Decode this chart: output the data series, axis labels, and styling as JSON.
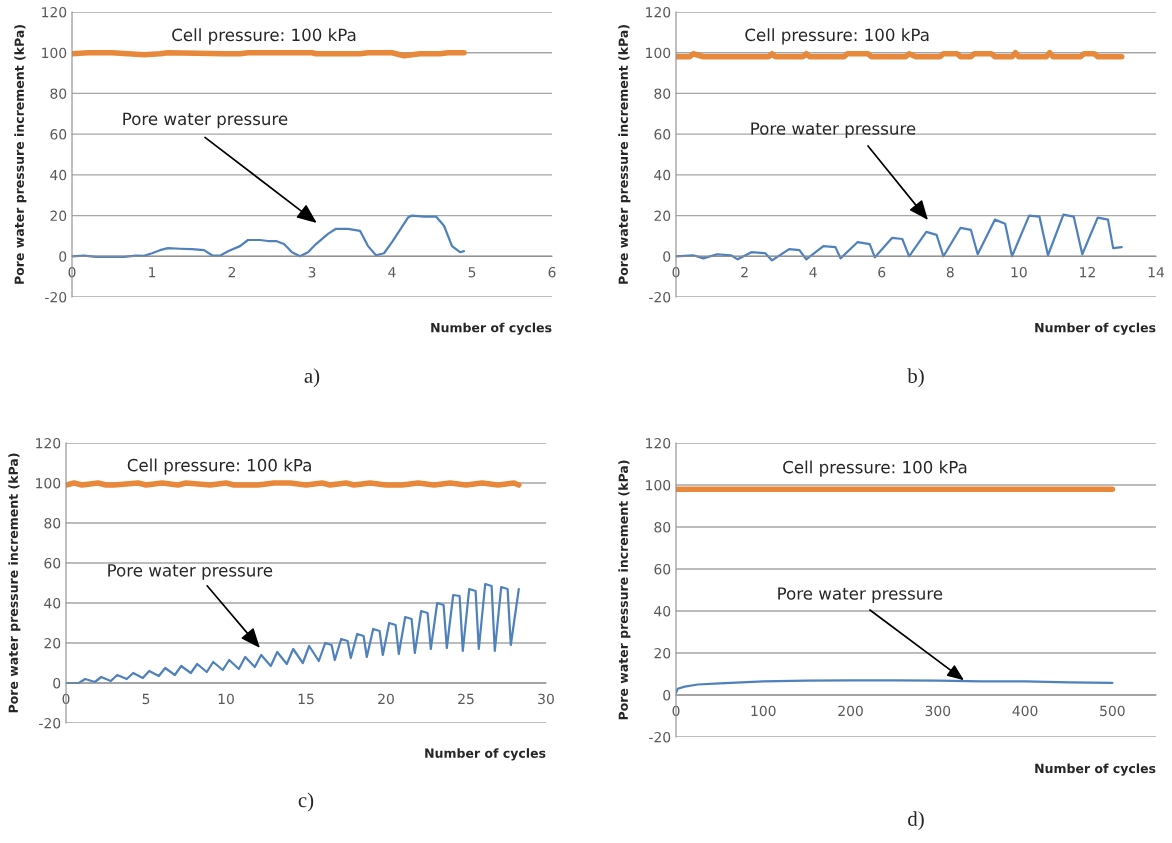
{
  "chart_data": [
    {
      "type": "line",
      "title": "a)",
      "xlabel": "Number of cycles",
      "ylabel": "Pore water pressure increment (kPa)",
      "xlim": [
        0,
        6
      ],
      "xticks": [
        0,
        1,
        2,
        3,
        4,
        5,
        6
      ],
      "ylim": [
        -20,
        120
      ],
      "yticks": [
        -20,
        0,
        20,
        40,
        60,
        80,
        100,
        120
      ],
      "grid": "y",
      "legend": false,
      "series": [
        {
          "color": "#e8883a",
          "x": [
            0,
            0.2,
            0.5,
            0.7,
            0.9,
            1.1,
            1.2,
            1.9,
            2.1,
            2.2,
            3.0,
            3.05,
            3.6,
            3.7,
            4.0,
            4.15,
            4.35,
            4.6,
            4.7,
            4.9
          ],
          "values": [
            99.5,
            100,
            100,
            99.5,
            99,
            99.5,
            100,
            99.5,
            99.5,
            100,
            100,
            99.5,
            99.5,
            100,
            100,
            98.5,
            99.5,
            99.5,
            100,
            100
          ]
        },
        {
          "color": "#4f81bd",
          "x": [
            0,
            0.15,
            0.3,
            0.5,
            0.65,
            0.8,
            0.9,
            1.0,
            1.1,
            1.2,
            1.35,
            1.5,
            1.65,
            1.75,
            1.85,
            1.95,
            2.1,
            2.2,
            2.35,
            2.45,
            2.55,
            2.65,
            2.75,
            2.85,
            2.95,
            3.05,
            3.2,
            3.3,
            3.45,
            3.6,
            3.7,
            3.8,
            3.9,
            4.0,
            4.1,
            4.2,
            4.25,
            4.4,
            4.55,
            4.65,
            4.75,
            4.85,
            4.9
          ],
          "values": [
            0,
            0.3,
            -0.3,
            -0.3,
            -0.3,
            0.3,
            0.2,
            1.5,
            3,
            4,
            3.7,
            3.5,
            3,
            0.5,
            0.3,
            2.5,
            5,
            8,
            8,
            7.5,
            7.5,
            6,
            2,
            0,
            2,
            6,
            11,
            13.5,
            13.5,
            12.5,
            5,
            0.5,
            1.5,
            7,
            13,
            19,
            20,
            19.5,
            19.5,
            15,
            5,
            2,
            2.5
          ]
        }
      ],
      "annotations": [
        {
          "text": "Cell pressure: 100 kPa",
          "x": 2.4,
          "y": 100
        },
        "Pore water pressure"
      ]
    },
    {
      "type": "line",
      "title": "b)",
      "xlabel": "Number of cycles",
      "ylabel": "Pore water pressure increment (kPa)",
      "xlim": [
        0,
        14
      ],
      "xticks": [
        0,
        2,
        4,
        6,
        8,
        10,
        12,
        14
      ],
      "ylim": [
        -20,
        120
      ],
      "yticks": [
        -20,
        0,
        20,
        40,
        60,
        80,
        100,
        120
      ],
      "grid": "y",
      "legend": false,
      "series": [
        {
          "color": "#e8883a",
          "x": [
            0,
            0.4,
            0.5,
            0.8,
            2.7,
            2.8,
            2.9,
            3.7,
            3.8,
            3.9,
            4.9,
            5.0,
            5.6,
            5.7,
            6.7,
            6.8,
            7.0,
            7.7,
            7.8,
            8.2,
            8.3,
            8.6,
            8.7,
            9.2,
            9.3,
            9.8,
            9.9,
            10.0,
            10.8,
            10.9,
            11.0,
            11.8,
            11.9,
            12.2,
            12.3,
            13
          ],
          "values": [
            98,
            98,
            99.5,
            98,
            98,
            99.5,
            98,
            98,
            99.5,
            98,
            98,
            99.5,
            99.5,
            98,
            98,
            99.5,
            98,
            98,
            99.5,
            99.5,
            98,
            98,
            99.5,
            99.5,
            98,
            98,
            100,
            98,
            98,
            100,
            98,
            98,
            99.5,
            99.5,
            98,
            98
          ]
        },
        {
          "color": "#4f81bd",
          "x": [
            0,
            0.5,
            0.8,
            1.2,
            1.6,
            1.8,
            2.2,
            2.6,
            2.8,
            3.3,
            3.6,
            3.8,
            4.3,
            4.65,
            4.8,
            5.3,
            5.65,
            5.8,
            6.3,
            6.6,
            6.8,
            7.3,
            7.6,
            7.8,
            8.3,
            8.6,
            8.8,
            9.3,
            9.6,
            9.8,
            10.3,
            10.6,
            10.85,
            11.3,
            11.6,
            11.85,
            12.3,
            12.6,
            12.75,
            13
          ],
          "values": [
            0,
            0.5,
            -1,
            1,
            0.5,
            -1.5,
            2,
            1.5,
            -2,
            3.5,
            3,
            -1.5,
            5,
            4.5,
            -1,
            7,
            6,
            -0.5,
            9,
            8.5,
            0,
            12,
            10.5,
            0,
            14,
            13,
            1,
            18,
            16,
            0,
            20,
            19.5,
            0.5,
            20.5,
            19.5,
            1,
            19,
            18,
            4,
            4.5
          ]
        }
      ],
      "annotations": [
        {
          "text": "Cell pressure: 100 kPa",
          "x": 4.7,
          "y": 100
        },
        "Pore water pressure"
      ]
    },
    {
      "type": "line",
      "title": "c)",
      "xlabel": "Number of cycles",
      "ylabel": "Pore water pressure increment (kPa)",
      "xlim": [
        0,
        30
      ],
      "xticks": [
        0,
        5,
        10,
        15,
        20,
        25,
        30
      ],
      "ylim": [
        -20,
        120
      ],
      "yticks": [
        -20,
        0,
        20,
        40,
        60,
        80,
        100,
        120
      ],
      "grid": "y",
      "legend": false,
      "series": [
        {
          "color": "#e8883a",
          "x": [
            0,
            0.5,
            1,
            2,
            2.5,
            3,
            4.5,
            5,
            6,
            7,
            7.5,
            9,
            10,
            10.5,
            12,
            13,
            14,
            15,
            16,
            16.5,
            17.5,
            18,
            19,
            20,
            21,
            22,
            23,
            24,
            25,
            26,
            27,
            28,
            28.3
          ],
          "values": [
            99,
            100,
            99,
            100,
            99,
            99,
            100,
            99,
            100,
            99,
            100,
            99,
            100,
            99,
            99,
            100,
            100,
            99,
            100,
            99,
            100,
            99,
            100,
            99,
            99,
            100,
            99,
            100,
            99,
            100,
            99,
            100,
            99
          ]
        },
        {
          "color": "#4f81bd",
          "x": [
            0,
            0.8,
            1.2,
            1.8,
            2.2,
            2.8,
            3.2,
            3.8,
            4.2,
            4.8,
            5.2,
            5.8,
            6.2,
            6.8,
            7.2,
            7.8,
            8.2,
            8.8,
            9.2,
            9.8,
            10.2,
            10.8,
            11.2,
            11.8,
            12.2,
            12.8,
            13.2,
            13.8,
            14.2,
            14.8,
            15.2,
            15.8,
            16.2,
            16.6,
            16.8,
            17.2,
            17.6,
            17.8,
            18.2,
            18.6,
            18.8,
            19.2,
            19.6,
            19.8,
            20.2,
            20.6,
            20.8,
            21.2,
            21.6,
            21.8,
            22.2,
            22.6,
            22.8,
            23.2,
            23.6,
            23.8,
            24.2,
            24.6,
            24.8,
            25.2,
            25.6,
            25.8,
            26.2,
            26.6,
            26.8,
            27.2,
            27.6,
            27.8,
            28.3
          ],
          "values": [
            0,
            0,
            2,
            0.5,
            3,
            1,
            4,
            2,
            5,
            2.5,
            6,
            3.5,
            7.5,
            4,
            8.5,
            5,
            9.5,
            5.5,
            10.5,
            6.5,
            11.5,
            7,
            13,
            8,
            14,
            8.5,
            15.5,
            9.5,
            17,
            10,
            18.5,
            11,
            20,
            19,
            11.5,
            22,
            21,
            12.5,
            24.5,
            23.5,
            13,
            27,
            26,
            14,
            30,
            29,
            14.5,
            33,
            32,
            15,
            36,
            35,
            17,
            40,
            39,
            17.5,
            44,
            43.5,
            16,
            47,
            46,
            17,
            49.5,
            48.5,
            16,
            48,
            47,
            19,
            47
          ]
        }
      ],
      "annotations": [
        {
          "text": "Cell pressure: 100 kPa",
          "x": 9.6,
          "y": 100
        },
        "Pore water pressure"
      ]
    },
    {
      "type": "line",
      "title": "d)",
      "xlabel": "Number of cycles",
      "ylabel": "Pore water pressure increment (kPa)",
      "xlim": [
        0,
        550
      ],
      "xticks": [
        0,
        100,
        200,
        300,
        400,
        500
      ],
      "ylim": [
        -20,
        120
      ],
      "yticks": [
        -20,
        0,
        20,
        40,
        60,
        80,
        100,
        120
      ],
      "grid": "y",
      "legend": false,
      "series": [
        {
          "color": "#e8883a",
          "x": [
            0,
            100,
            200,
            300,
            400,
            500
          ],
          "values": [
            98,
            98,
            98,
            98,
            98,
            98
          ]
        },
        {
          "color": "#4f81bd",
          "x": [
            0,
            2,
            10,
            25,
            50,
            100,
            150,
            200,
            250,
            300,
            350,
            400,
            450,
            500
          ],
          "values": [
            1,
            3,
            4,
            5,
            5.5,
            6.5,
            6.8,
            7,
            7,
            6.8,
            6.5,
            6.5,
            6,
            5.8
          ]
        }
      ],
      "annotations": [
        {
          "text": "Cell pressure: 100 kPa",
          "x": 228,
          "y": 100
        },
        {
          "text": "Pore water pressure",
          "x": 330,
          "y": 7
        }
      ]
    }
  ]
}
